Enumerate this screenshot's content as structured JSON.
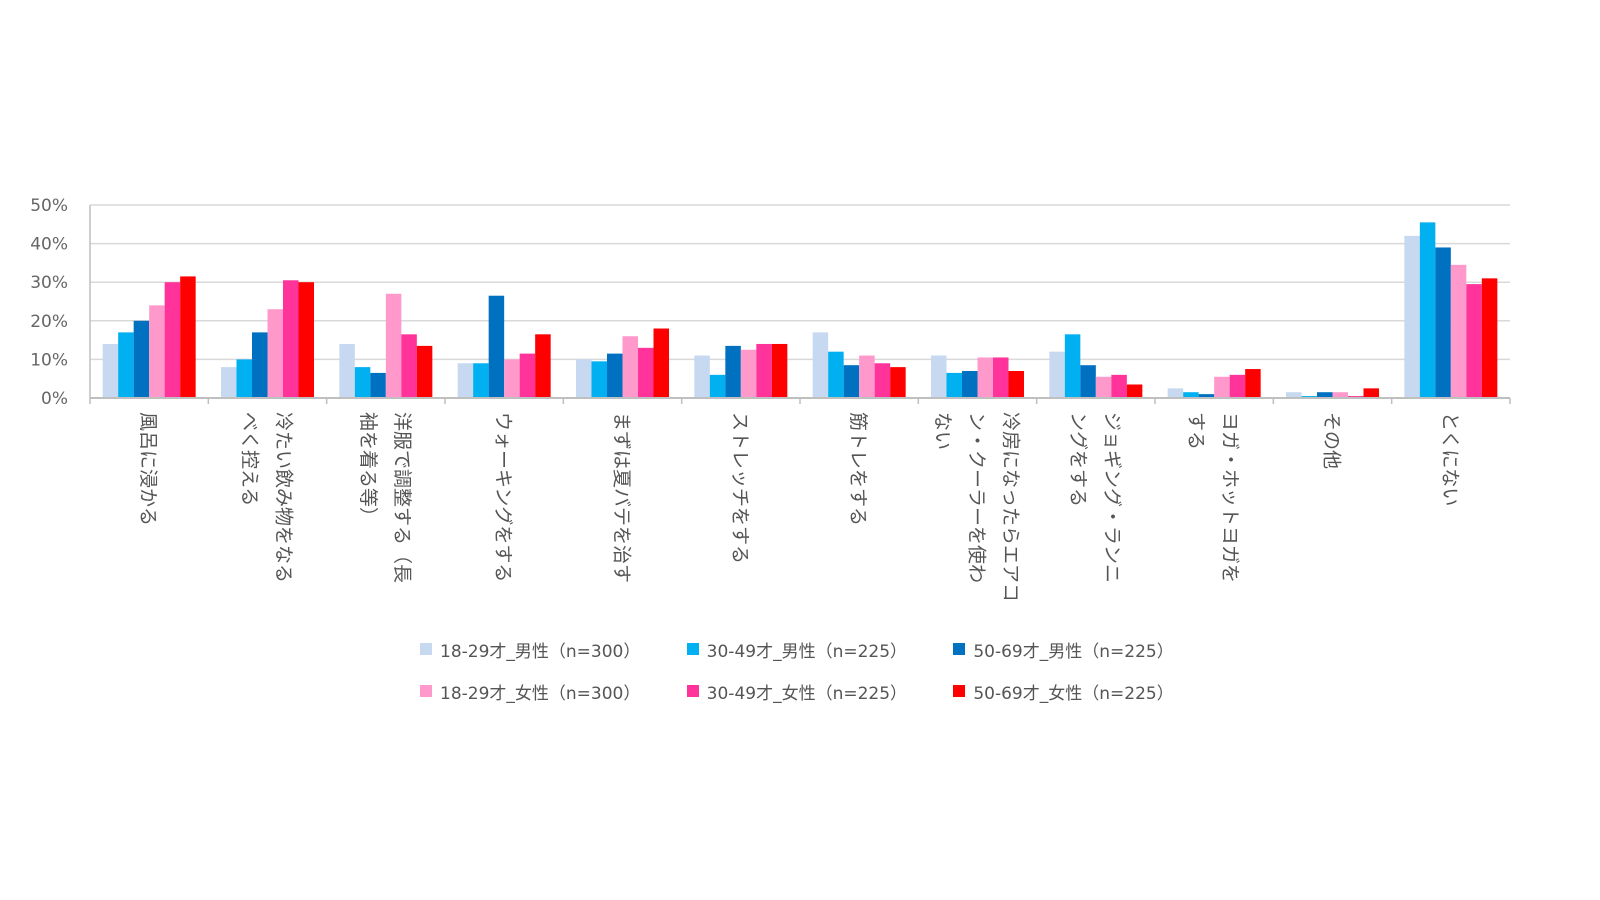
{
  "chart_data": {
    "type": "bar",
    "ylim": [
      0,
      50
    ],
    "yticks": [
      "0%",
      "10%",
      "20%",
      "30%",
      "40%",
      "50%"
    ],
    "grid": true,
    "legend_position": "bottom",
    "categories": [
      [
        "風呂に浸かる"
      ],
      [
        "冷たい飲み物をなる",
        "べく控える"
      ],
      [
        "洋服で調整する（長",
        "袖を着る等）"
      ],
      [
        "ウォーキングをする"
      ],
      [
        "まずは夏バテを治す"
      ],
      [
        "ストレッチをする"
      ],
      [
        "筋トレをする"
      ],
      [
        "冷房になったらエアコ",
        "ン・クーラーを使わ",
        "ない"
      ],
      [
        "ジョギング・ランニ",
        "ングをする"
      ],
      [
        "ヨガ・ホットヨガを",
        "する"
      ],
      [
        "その他"
      ],
      [
        "とくにない"
      ]
    ],
    "series": [
      {
        "name": "18-29才_男性（n=300）",
        "color": "#c6d9f1",
        "values": [
          14,
          8,
          14,
          9,
          10,
          11,
          17,
          11,
          12,
          2.5,
          1.5,
          42
        ]
      },
      {
        "name": "30-49才_男性（n=225）",
        "color": "#00b0f0",
        "values": [
          17,
          10,
          8,
          9,
          9.5,
          6,
          12,
          6.5,
          16.5,
          1.5,
          0.5,
          45.5
        ]
      },
      {
        "name": "50-69才_男性（n=225）",
        "color": "#0070c0",
        "values": [
          20,
          17,
          6.5,
          26.5,
          11.5,
          13.5,
          8.5,
          7,
          8.5,
          1,
          1.5,
          39
        ]
      },
      {
        "name": "18-29才_女性（n=300）",
        "color": "#ff99cc",
        "values": [
          24,
          23,
          27,
          10,
          16,
          12.5,
          11,
          10.5,
          5.5,
          5.5,
          1.5,
          34.5
        ]
      },
      {
        "name": "30-49才_女性（n=225）",
        "color": "#ff3399",
        "values": [
          30,
          30.5,
          16.5,
          11.5,
          13,
          14,
          9,
          10.5,
          6,
          6,
          0.5,
          29.5
        ]
      },
      {
        "name": "50-69才_女性（n=225）",
        "color": "#ff0000",
        "values": [
          31.5,
          30,
          13.5,
          16.5,
          18,
          14,
          8,
          7,
          3.5,
          7.5,
          2.5,
          31
        ]
      }
    ]
  }
}
